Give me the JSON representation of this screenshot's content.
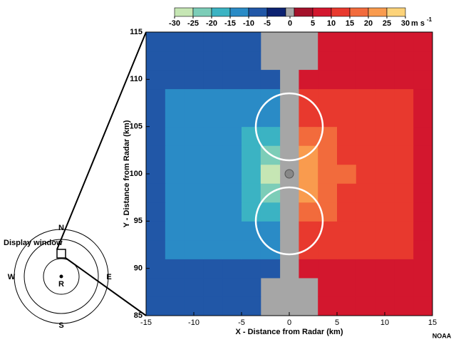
{
  "chart_data": {
    "type": "heatmap",
    "x_label": "X - Distance from Radar (km)",
    "y_label": "Y - Distance from Radar (km)",
    "xlim": [
      -15,
      15
    ],
    "ylim": [
      85,
      115
    ],
    "xticks": [
      -15,
      -10,
      -5,
      0,
      5,
      10,
      15
    ],
    "yticks": [
      85,
      90,
      95,
      100,
      105,
      110,
      115
    ],
    "x": [
      -14,
      -12,
      -10,
      -8,
      -6,
      -4,
      -2,
      0,
      2,
      4,
      6,
      8,
      10,
      12,
      14
    ],
    "y": [
      86,
      88,
      90,
      92,
      94,
      96,
      98,
      100,
      102,
      104,
      106,
      108,
      110,
      112,
      114
    ],
    "z": [
      [
        -7,
        -7,
        -7,
        -7,
        -7,
        -7,
        null,
        null,
        null,
        7,
        7,
        7,
        7,
        7,
        7
      ],
      [
        -7,
        -7,
        -7,
        -7,
        -7,
        -7,
        null,
        null,
        null,
        7,
        7,
        7,
        7,
        7,
        7
      ],
      [
        -7,
        -7,
        -7,
        -7,
        -7,
        -7,
        -7,
        null,
        7,
        7,
        7,
        7,
        7,
        7,
        7
      ],
      [
        -7,
        -12,
        -12,
        -12,
        -12,
        -12,
        -12,
        null,
        12,
        12,
        12,
        12,
        12,
        12,
        7
      ],
      [
        -7,
        -12,
        -13,
        -13,
        -13,
        -13,
        -13,
        null,
        13,
        13,
        13,
        13,
        13,
        12,
        7
      ],
      [
        -7,
        -12,
        -13,
        -13,
        -13,
        -16,
        -18,
        null,
        17,
        16,
        13,
        13,
        13,
        12,
        7
      ],
      [
        -7,
        -12,
        -13,
        -13,
        -14,
        -18,
        -23,
        null,
        22,
        18,
        14,
        13,
        13,
        12,
        7
      ],
      [
        -7,
        -12,
        -13,
        -13,
        -15,
        -19,
        -27,
        null,
        24,
        19,
        15,
        13,
        13,
        12,
        7
      ],
      [
        -7,
        -12,
        -13,
        -13,
        -14,
        -18,
        -23,
        null,
        22,
        18,
        14,
        13,
        13,
        12,
        7
      ],
      [
        -7,
        -12,
        -13,
        -13,
        -13,
        -16,
        -18,
        null,
        17,
        16,
        13,
        13,
        13,
        12,
        7
      ],
      [
        -7,
        -12,
        -13,
        -13,
        -13,
        -13,
        -13,
        null,
        13,
        13,
        13,
        13,
        13,
        12,
        7
      ],
      [
        -7,
        -12,
        -12,
        -12,
        -12,
        -12,
        -12,
        null,
        12,
        12,
        12,
        12,
        12,
        12,
        7
      ],
      [
        -7,
        -7,
        -7,
        -7,
        -7,
        -7,
        -7,
        null,
        7,
        7,
        7,
        7,
        7,
        7,
        7
      ],
      [
        -7,
        -7,
        -7,
        -7,
        -7,
        -7,
        null,
        null,
        null,
        7,
        7,
        7,
        7,
        7,
        7
      ],
      [
        -7,
        -7,
        -7,
        -7,
        -7,
        -7,
        null,
        null,
        null,
        7,
        7,
        7,
        7,
        7,
        7
      ]
    ],
    "colorbar": {
      "ticks": [
        -30,
        -25,
        -20,
        -15,
        -10,
        -5,
        0,
        5,
        10,
        15,
        20,
        25,
        30
      ],
      "colors": [
        "#c6e6b4",
        "#7ccdb8",
        "#3bb3c3",
        "#2a8bc6",
        "#2157a7",
        "#0c2271",
        "#a6a6a6",
        "#a4122b",
        "#d3172e",
        "#e8392e",
        "#f26b3c",
        "#f99b4e",
        "#fcd37a"
      ],
      "unit": "m s",
      "unit_exp": "-1"
    },
    "inset": {
      "title": "Display window",
      "north": "N",
      "south": "S",
      "east": "E",
      "west": "W",
      "radar": "R"
    },
    "credit": "NOAA"
  }
}
